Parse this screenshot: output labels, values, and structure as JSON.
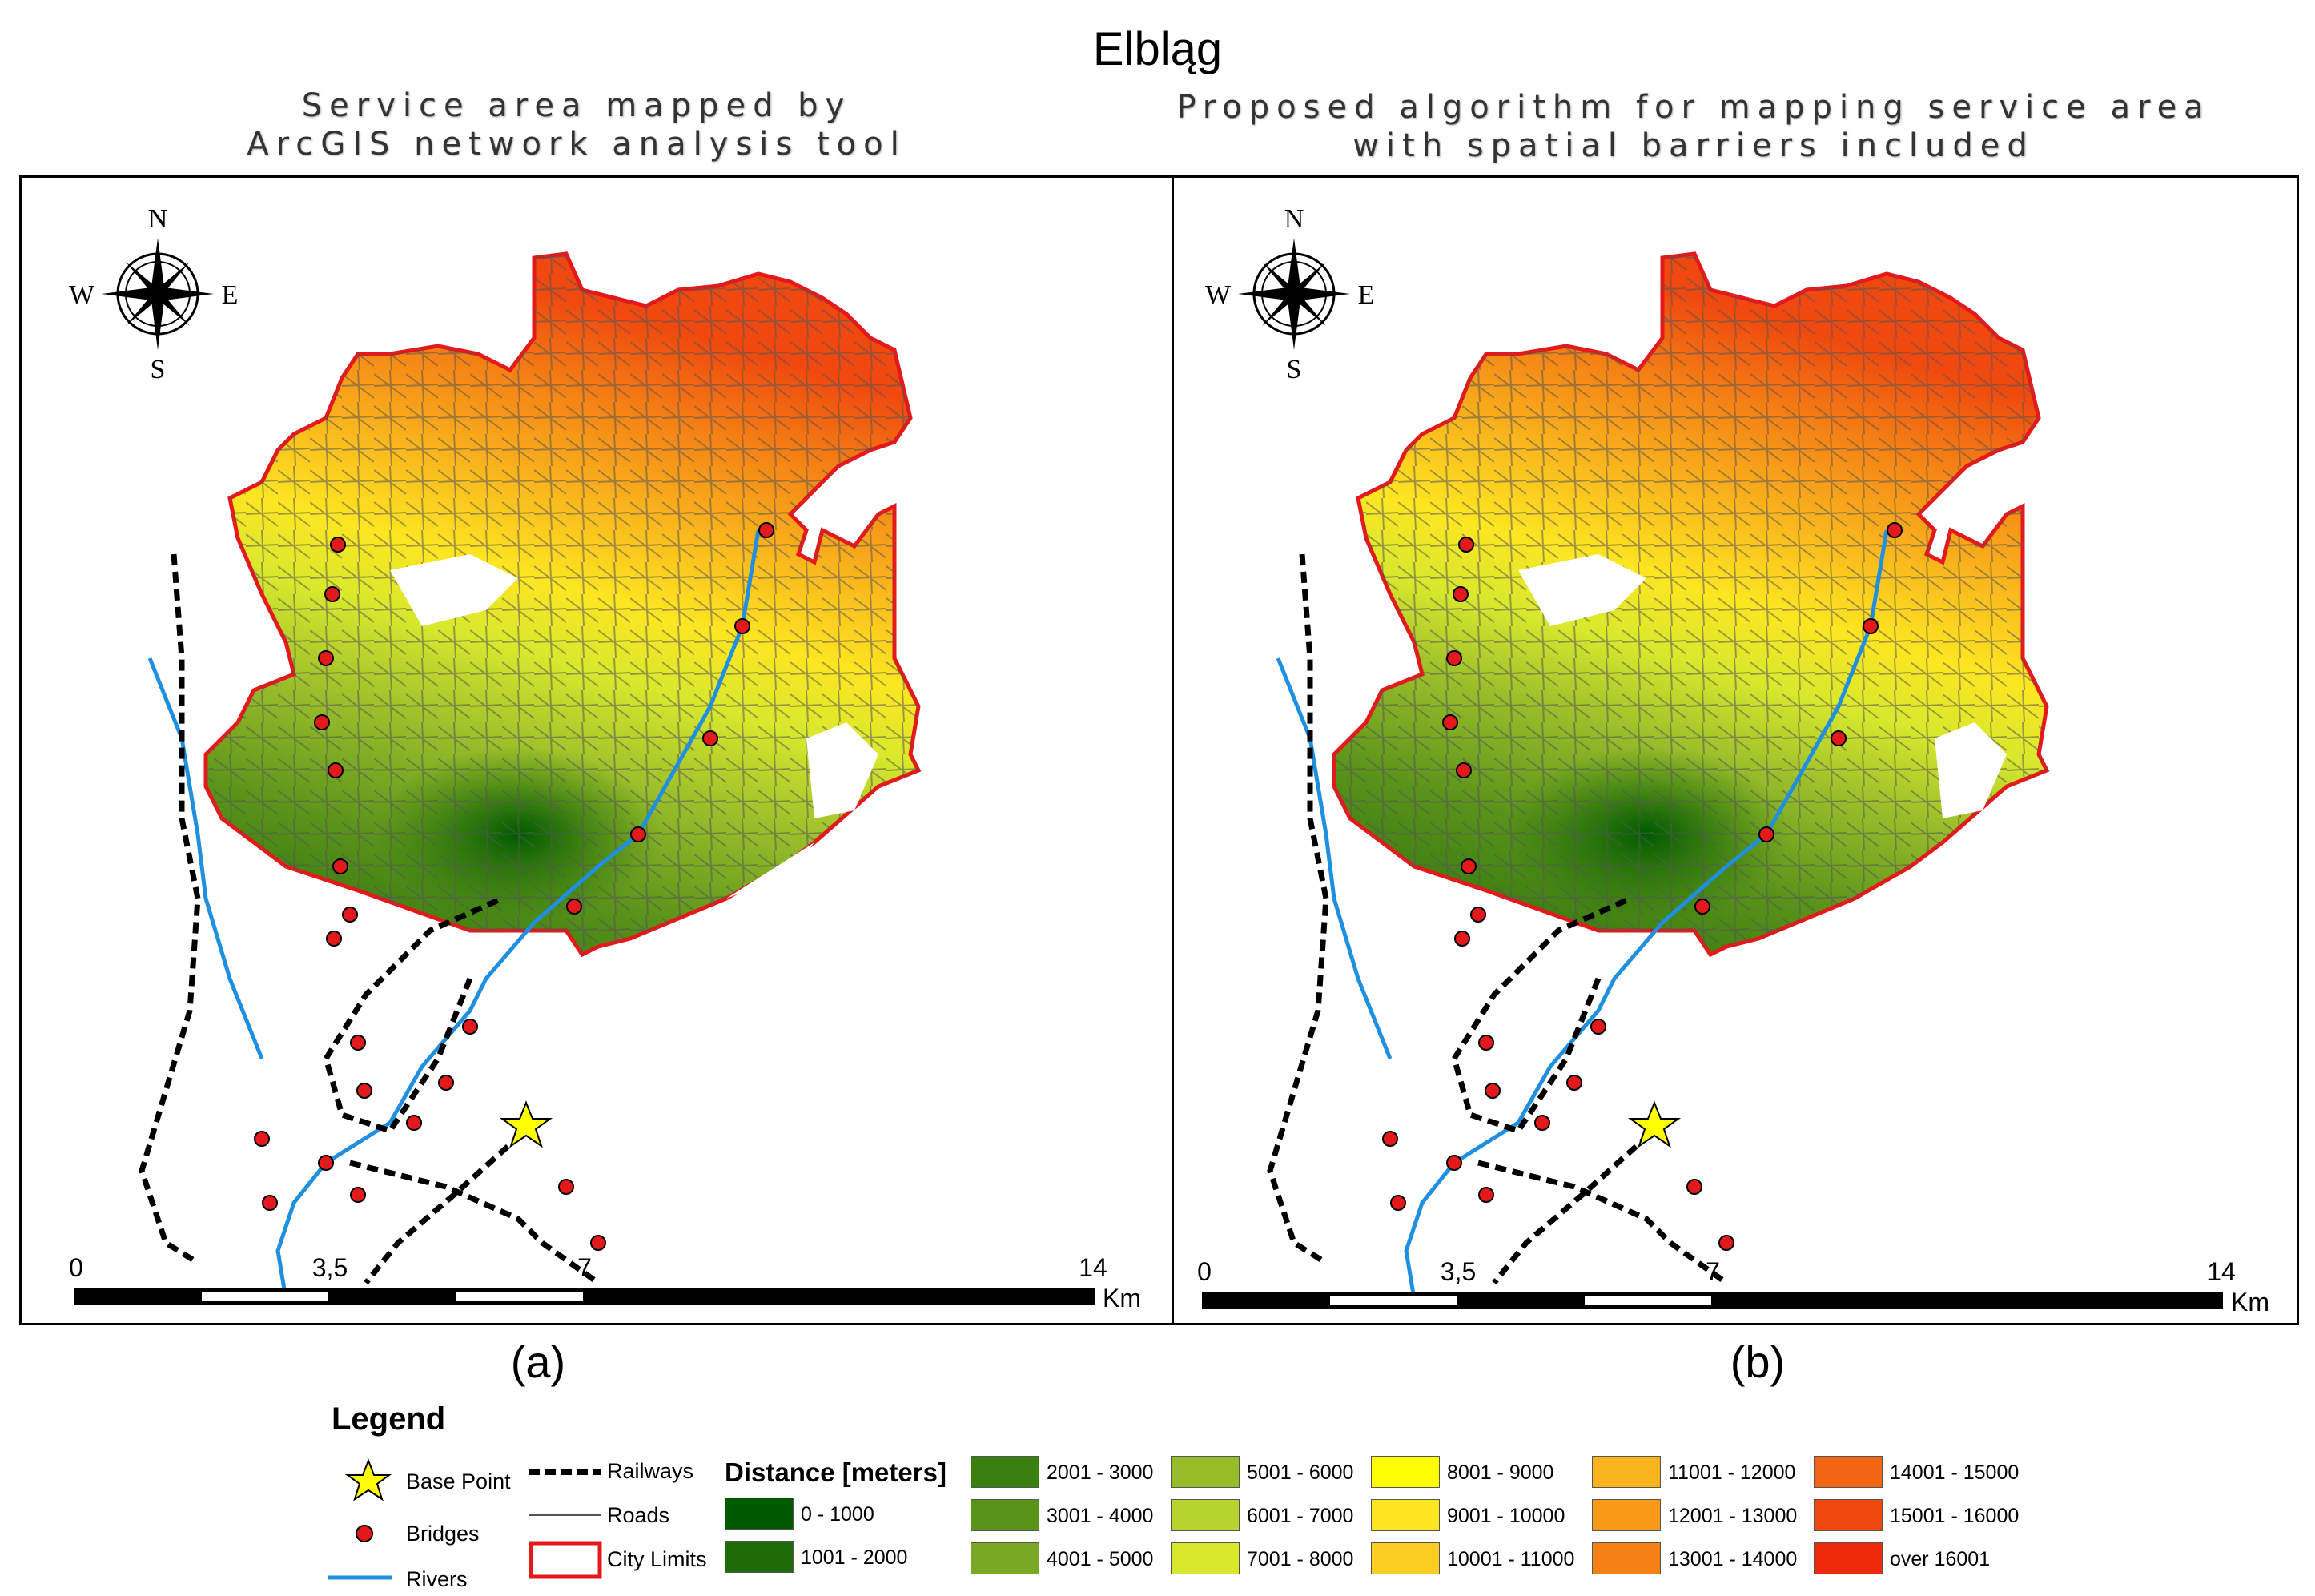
{
  "title": "Elbląg",
  "panel_a": {
    "subtitle_line1": "Service area mapped by",
    "subtitle_line2": "ArcGIS network analysis tool",
    "label": "(a)"
  },
  "panel_b": {
    "subtitle_line1": "Proposed algorithm for mapping service area",
    "subtitle_line2": "with spatial barriers included",
    "label": "(b)"
  },
  "compass": {
    "icon": "compass-rose-icon",
    "n": "N",
    "s": "S",
    "e": "E",
    "w": "W"
  },
  "scale_bar": {
    "ticks": [
      "0",
      "3,5",
      "7",
      "14"
    ],
    "unit": "Km"
  },
  "legend": {
    "title": "Legend",
    "symbols": [
      {
        "label": "Base Point",
        "icon": "star-icon",
        "color": "#ffff00"
      },
      {
        "label": "Bridges",
        "icon": "dot-icon",
        "color": "#e31a1c"
      },
      {
        "label": "Rivers",
        "icon": "line-icon",
        "color": "#1f8fe0"
      },
      {
        "label": "Railways",
        "icon": "railway-icon",
        "color": "#000000"
      },
      {
        "label": "Roads",
        "icon": "line-icon",
        "color": "#555555"
      },
      {
        "label": "City Limits",
        "icon": "outline-box-icon",
        "color": "#e31a1c"
      }
    ],
    "distance_title": "Distance [meters]",
    "classes": [
      {
        "label": "0 - 1000",
        "color": "#005a00"
      },
      {
        "label": "1001 - 2000",
        "color": "#1e6b08"
      },
      {
        "label": "2001 - 3000",
        "color": "#3a7f10"
      },
      {
        "label": "3001 - 4000",
        "color": "#5a931a"
      },
      {
        "label": "4001 - 5000",
        "color": "#79a822"
      },
      {
        "label": "5001 - 6000",
        "color": "#98bd2a"
      },
      {
        "label": "6001 - 7000",
        "color": "#b7d32e"
      },
      {
        "label": "7001 - 8000",
        "color": "#d8e82c"
      },
      {
        "label": "8001 - 9000",
        "color": "#ffff00"
      },
      {
        "label": "9001 - 10000",
        "color": "#fde621"
      },
      {
        "label": "10001 - 11000",
        "color": "#fbcd22"
      },
      {
        "label": "11001 - 12000",
        "color": "#f9b31c"
      },
      {
        "label": "12001 - 13000",
        "color": "#f89a18"
      },
      {
        "label": "13001 - 14000",
        "color": "#f58014"
      },
      {
        "label": "14001 - 15000",
        "color": "#f36512"
      },
      {
        "label": "15001 - 16000",
        "color": "#f0480e"
      },
      {
        "label": "over 16001",
        "color": "#ee2a0a"
      }
    ]
  }
}
